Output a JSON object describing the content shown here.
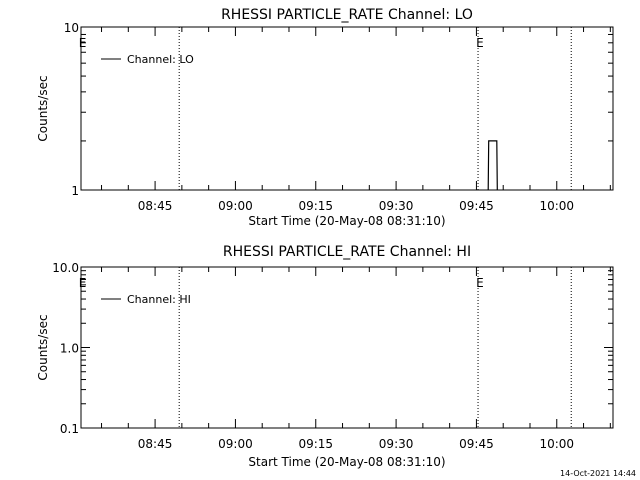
{
  "footer_timestamp": "14-Oct-2021 14:44",
  "chart_data": [
    {
      "type": "line",
      "title": "RHESSI PARTICLE_RATE Channel: LO",
      "xlabel": "Start Time (20-May-08 08:31:10)",
      "ylabel": "Counts/sec",
      "y_scale": "log",
      "ylim": [
        1,
        10
      ],
      "y_ticks": [
        1,
        10
      ],
      "y_tick_labels": [
        "1",
        "10"
      ],
      "xlim": [
        "08:31:10",
        "10:10:30"
      ],
      "x_ticks": [
        "08:45",
        "09:00",
        "09:15",
        "09:30",
        "09:45",
        "10:00"
      ],
      "x_ticks_minutes": [
        45,
        60,
        75,
        90,
        105,
        120
      ],
      "vlines_minutes": [
        49.5,
        105.3,
        122.7
      ],
      "markers": [
        {
          "text": "E",
          "x_minutes": 31.5
        },
        {
          "text": "E",
          "x_minutes": 105.7
        }
      ],
      "legend": "Channel: LO",
      "legend_placement": "top-left",
      "series": [
        {
          "name": "Channel: LO",
          "x_minutes": [
            107.2,
            107.3,
            108.8,
            108.9
          ],
          "values": [
            1,
            2,
            2,
            1
          ]
        }
      ]
    },
    {
      "type": "line",
      "title": "RHESSI PARTICLE_RATE Channel: HI",
      "xlabel": "Start Time (20-May-08 08:31:10)",
      "ylabel": "Counts/sec",
      "y_scale": "log",
      "ylim": [
        0.1,
        10
      ],
      "y_ticks": [
        0.1,
        1,
        10
      ],
      "y_tick_labels": [
        "0.1",
        "1.0",
        "10.0"
      ],
      "xlim": [
        "08:31:10",
        "10:10:30"
      ],
      "x_ticks": [
        "08:45",
        "09:00",
        "09:15",
        "09:30",
        "09:45",
        "10:00"
      ],
      "x_ticks_minutes": [
        45,
        60,
        75,
        90,
        105,
        120
      ],
      "vlines_minutes": [
        49.5,
        105.3,
        122.7
      ],
      "markers": [
        {
          "text": "E",
          "x_minutes": 31.5
        },
        {
          "text": "E",
          "x_minutes": 105.7
        }
      ],
      "legend": "Channel: HI",
      "legend_placement": "top-left",
      "series": [
        {
          "name": "Channel: HI",
          "x_minutes": [],
          "values": []
        }
      ]
    }
  ]
}
